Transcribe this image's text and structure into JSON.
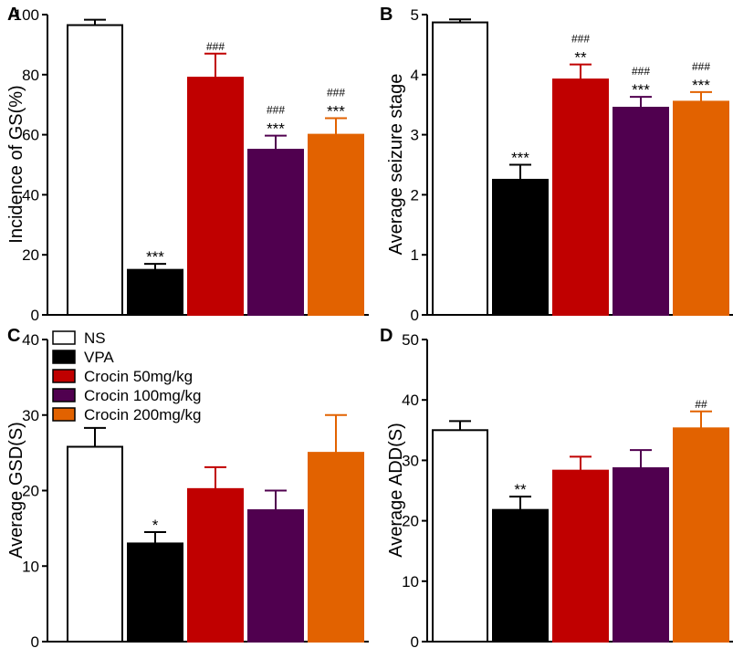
{
  "groups": [
    "NS",
    "VPA",
    "Crocin 50mg/kg",
    "Crocin 100mg/kg",
    "Crocin 200mg/kg"
  ],
  "colors": [
    "#ffffff",
    "#000000",
    "#c00000",
    "#50004f",
    "#e26200"
  ],
  "legend": {
    "items": [
      "NS",
      "VPA",
      "Crocin 50mg/kg",
      "Crocin 100mg/kg",
      "Crocin 200mg/kg"
    ]
  },
  "chart_data": [
    {
      "panel": "A",
      "type": "bar",
      "ylabel": "Incidence of GS(%)",
      "ylim": [
        0,
        100
      ],
      "yticks": [
        0,
        20,
        40,
        60,
        80,
        100
      ],
      "categories": [
        "NS",
        "VPA",
        "Crocin 50mg/kg",
        "Crocin 100mg/kg",
        "Crocin 200mg/kg"
      ],
      "values": [
        96.5,
        15,
        79,
        55,
        60
      ],
      "errors": [
        1.8,
        2,
        8,
        4.7,
        5.5
      ],
      "annotations": [
        {
          "bar": 1,
          "stars": "***",
          "hashes": ""
        },
        {
          "bar": 2,
          "stars": "",
          "hashes": "###"
        },
        {
          "bar": 3,
          "stars": "***",
          "hashes": "###"
        },
        {
          "bar": 4,
          "stars": "***",
          "hashes": "###"
        }
      ]
    },
    {
      "panel": "B",
      "type": "bar",
      "ylabel": "Average seizure stage",
      "ylim": [
        0,
        5
      ],
      "yticks": [
        0,
        1,
        2,
        3,
        4,
        5
      ],
      "categories": [
        "NS",
        "VPA",
        "Crocin 50mg/kg",
        "Crocin 100mg/kg",
        "Crocin 200mg/kg"
      ],
      "values": [
        4.87,
        2.25,
        3.92,
        3.45,
        3.55
      ],
      "errors": [
        0.05,
        0.25,
        0.25,
        0.18,
        0.16
      ],
      "annotations": [
        {
          "bar": 1,
          "stars": "***",
          "hashes": ""
        },
        {
          "bar": 2,
          "stars": "**",
          "hashes": "###"
        },
        {
          "bar": 3,
          "stars": "***",
          "hashes": "###"
        },
        {
          "bar": 4,
          "stars": "***",
          "hashes": "###"
        }
      ]
    },
    {
      "panel": "C",
      "type": "bar",
      "ylabel": "Average GSD(S)",
      "ylim": [
        0,
        40
      ],
      "yticks": [
        0,
        10,
        20,
        30,
        40
      ],
      "categories": [
        "NS",
        "VPA",
        "Crocin 50mg/kg",
        "Crocin 100mg/kg",
        "Crocin 200mg/kg"
      ],
      "values": [
        25.8,
        13,
        20.2,
        17.4,
        25
      ],
      "errors": [
        2.5,
        1.5,
        2.9,
        2.6,
        5
      ],
      "annotations": [
        {
          "bar": 1,
          "stars": "*",
          "hashes": ""
        }
      ]
    },
    {
      "panel": "D",
      "type": "bar",
      "ylabel": "Average ADD(S)",
      "ylim": [
        0,
        50
      ],
      "yticks": [
        0,
        10,
        20,
        30,
        40,
        50
      ],
      "categories": [
        "NS",
        "VPA",
        "Crocin 50mg/kg",
        "Crocin 100mg/kg",
        "Crocin 200mg/kg"
      ],
      "values": [
        35,
        21.8,
        28.3,
        28.7,
        35.3
      ],
      "errors": [
        1.5,
        2.2,
        2.3,
        3,
        2.8
      ],
      "annotations": [
        {
          "bar": 1,
          "stars": "**",
          "hashes": ""
        },
        {
          "bar": 4,
          "stars": "",
          "hashes": "##"
        }
      ]
    }
  ]
}
